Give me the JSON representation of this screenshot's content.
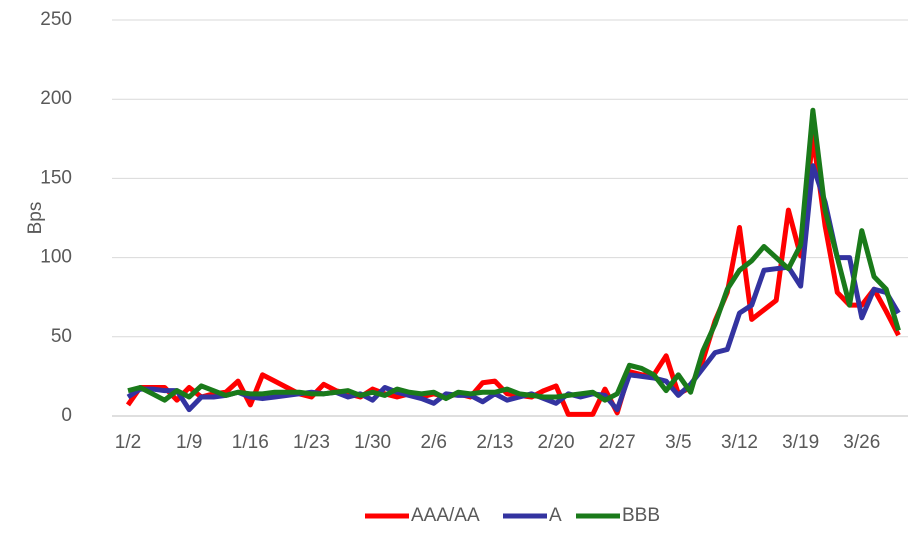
{
  "chart_data": {
    "type": "line",
    "ylabel": "Bps",
    "categories": [
      "1/2",
      null,
      null,
      null,
      null,
      "1/9",
      null,
      null,
      null,
      null,
      "1/16",
      null,
      null,
      null,
      null,
      "1/23",
      null,
      null,
      null,
      null,
      "1/30",
      null,
      null,
      null,
      null,
      "2/6",
      null,
      null,
      null,
      null,
      "2/13",
      null,
      null,
      null,
      null,
      "2/20",
      null,
      null,
      null,
      null,
      "2/27",
      null,
      null,
      null,
      null,
      "3/5",
      null,
      null,
      null,
      null,
      "3/12",
      null,
      null,
      null,
      null,
      "3/19",
      null,
      null,
      null,
      null,
      "3/26",
      null,
      null,
      null
    ],
    "series": [
      {
        "name": "AAA/AA",
        "color": "#ff0000",
        "values": [
          7,
          18,
          18,
          18,
          10,
          18,
          12,
          14,
          15,
          22,
          7,
          26,
          22,
          18,
          14,
          12,
          20,
          16,
          14,
          12,
          17,
          14,
          12,
          14,
          12,
          14,
          12,
          14,
          12,
          21,
          22,
          14,
          13,
          12,
          16,
          19,
          1,
          1,
          1,
          17,
          2,
          28,
          26,
          26,
          38,
          14,
          18,
          35,
          60,
          78,
          119,
          61,
          67,
          73,
          130,
          101,
          177,
          120,
          78,
          70,
          70,
          80,
          66,
          51
        ]
      },
      {
        "name": "A",
        "color": "#3333a0",
        "values": [
          12,
          17,
          17,
          16,
          16,
          4,
          12,
          12,
          13,
          15,
          12,
          11,
          12,
          13,
          14,
          15,
          14,
          15,
          12,
          14,
          10,
          18,
          15,
          13,
          11,
          8,
          14,
          13,
          13,
          9,
          14,
          10,
          12,
          14,
          11,
          8,
          14,
          12,
          14,
          13,
          4,
          26,
          25,
          24,
          22,
          13,
          20,
          30,
          40,
          42,
          65,
          70,
          92,
          93,
          94,
          82,
          158,
          135,
          100,
          100,
          62,
          80,
          78,
          65
        ]
      },
      {
        "name": "BBB",
        "color": "#1a7a1a",
        "values": [
          16,
          18,
          14,
          10,
          16,
          12,
          19,
          16,
          13,
          15,
          14,
          14,
          15,
          15,
          15,
          14,
          14,
          15,
          16,
          13,
          15,
          13,
          17,
          15,
          14,
          15,
          11,
          15,
          14,
          15,
          15,
          17,
          14,
          13,
          12,
          12,
          13,
          14,
          15,
          10,
          14,
          32,
          30,
          26,
          16,
          26,
          15,
          41,
          58,
          80,
          92,
          98,
          107,
          100,
          93,
          108,
          193,
          130,
          100,
          70,
          117,
          88,
          80,
          54
        ]
      }
    ],
    "ylim": [
      0,
      250
    ],
    "yticks": [
      0,
      50,
      100,
      150,
      200,
      250
    ],
    "grid": true,
    "legend": "bottom"
  }
}
